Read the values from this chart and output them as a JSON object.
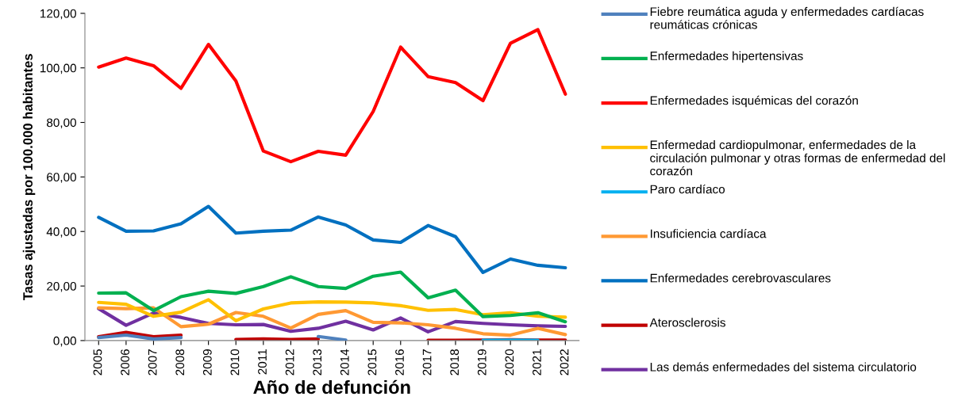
{
  "chart_data": {
    "type": "line",
    "xlabel": "Año de defunción",
    "ylabel": "Tasas ajustadas por 100.000 habitantes",
    "categories": [
      "2005",
      "2006",
      "2007",
      "2008",
      "2009",
      "2010",
      "2011",
      "2012",
      "2013",
      "2014",
      "2015",
      "2016",
      "2017",
      "2018",
      "2019",
      "2020",
      "2021",
      "2022"
    ],
    "ylim": [
      0,
      120
    ],
    "yticks": [
      {
        "value": 0,
        "label": "0,00"
      },
      {
        "value": 20,
        "label": "20,00"
      },
      {
        "value": 40,
        "label": "40,00"
      },
      {
        "value": 60,
        "label": "60,00"
      },
      {
        "value": 80,
        "label": "80,00"
      },
      {
        "value": 100,
        "label": "100,00"
      },
      {
        "value": 120,
        "label": "120,00"
      }
    ],
    "grid": false,
    "legend": "right",
    "marker": "none",
    "line_style": "solid",
    "series": [
      {
        "name": "Fiebre reumática aguda y enfermedades cardíacas reumáticas crónicas",
        "color": "#4f81bd",
        "values": [
          1.1,
          2.0,
          0.6,
          1.1,
          null,
          null,
          null,
          null,
          1.5,
          0.2,
          null,
          null,
          null,
          null,
          null,
          null,
          null,
          null
        ]
      },
      {
        "name": "Enfermedades hipertensivas",
        "color": "#00b050",
        "values": [
          17.4,
          17.5,
          11.0,
          16.1,
          18.1,
          17.3,
          19.8,
          23.4,
          19.8,
          19.1,
          23.6,
          25.1,
          15.7,
          18.5,
          8.8,
          9.2,
          10.2,
          6.9
        ]
      },
      {
        "name": "Enfermedades isquémicas del corazón",
        "color": "#ff0000",
        "values": [
          100.3,
          103.6,
          100.8,
          92.5,
          108.6,
          95.2,
          69.5,
          65.6,
          69.4,
          68.0,
          84.0,
          107.6,
          96.8,
          94.6,
          88.0,
          109.0,
          114.0,
          90.4
        ]
      },
      {
        "name": "Enfermedad cardiopulmonar, enfermedades de la circulación pulmonar y otras formas de enfermedad del corazón",
        "color": "#ffc000",
        "values": [
          14.0,
          13.3,
          8.9,
          10.4,
          15.0,
          7.3,
          11.6,
          13.8,
          14.2,
          14.1,
          13.8,
          12.8,
          11.1,
          11.4,
          9.5,
          10.2,
          8.9,
          8.6
        ]
      },
      {
        "name": "Paro cardíaco",
        "color": "#00b0f0",
        "values": [
          null,
          null,
          null,
          null,
          null,
          null,
          null,
          null,
          null,
          null,
          null,
          null,
          null,
          null,
          0.1,
          0.2,
          0.1,
          null
        ]
      },
      {
        "name": "Insuficiencia cardíaca",
        "color": "#ff9933",
        "values": [
          12.0,
          11.7,
          12.0,
          5.1,
          6.0,
          10.3,
          8.9,
          4.6,
          9.6,
          11.0,
          6.7,
          6.5,
          5.8,
          4.5,
          2.5,
          2.0,
          4.5,
          2.2
        ]
      },
      {
        "name": "Enfermedades cerebrovasculares",
        "color": "#0070c0",
        "values": [
          45.2,
          40.1,
          40.2,
          42.8,
          49.2,
          39.4,
          40.1,
          40.5,
          45.3,
          42.4,
          36.9,
          36.0,
          42.2,
          38.1,
          25.0,
          29.9,
          27.6,
          26.7
        ]
      },
      {
        "name": "Aterosclerosis",
        "color": "#c00000",
        "values": [
          1.4,
          3.0,
          1.4,
          2.0,
          null,
          0.4,
          0.6,
          0.4,
          0.6,
          null,
          null,
          null,
          0.1,
          0.1,
          0.2,
          0.3,
          0.2,
          0.2
        ]
      },
      {
        "name": "Las demás enfermedades del sistema circulatorio",
        "color": "#7030a0",
        "values": [
          11.7,
          5.6,
          10.1,
          8.5,
          6.3,
          5.8,
          5.9,
          3.4,
          4.5,
          7.1,
          3.9,
          8.3,
          3.2,
          7.0,
          6.3,
          5.8,
          5.4,
          5.2
        ]
      }
    ]
  }
}
